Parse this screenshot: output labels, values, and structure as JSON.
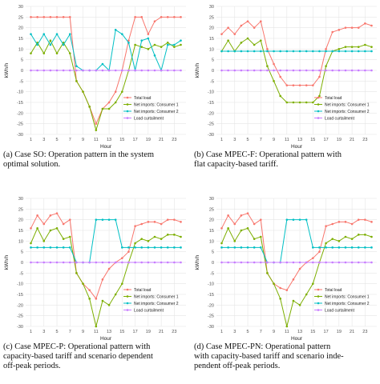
{
  "legend": [
    "Total load",
    "Net imports: Consumer 1",
    "Net imports: Consumer 2",
    "Load curtailment"
  ],
  "colors": {
    "total": "#f8766d",
    "c1": "#7cae00",
    "c2": "#00bfc4",
    "curt": "#c77cff",
    "grid": "#e5e5e5"
  },
  "chart_data": [
    {
      "type": "line",
      "ylabel": "kWh/h",
      "xlabel": "Hour",
      "ylim": [
        -30,
        30
      ],
      "yticks": [
        -30,
        -25,
        -20,
        -15,
        -10,
        -5,
        0,
        5,
        10,
        15,
        20,
        25,
        30
      ],
      "xticks": [
        1,
        3,
        5,
        7,
        9,
        11,
        13,
        15,
        17,
        19,
        21,
        23
      ],
      "x": [
        1,
        2,
        3,
        4,
        5,
        6,
        7,
        8,
        9,
        10,
        11,
        12,
        13,
        14,
        15,
        16,
        17,
        18,
        19,
        20,
        21,
        22,
        23,
        24
      ],
      "series": [
        {
          "name": "Total load",
          "values": [
            25,
            25,
            25,
            25,
            25,
            25,
            25,
            -5,
            -10,
            -17,
            -25,
            -18,
            -15,
            -10,
            0,
            14,
            25,
            25,
            17,
            23,
            25,
            25,
            25,
            25
          ]
        },
        {
          "name": "Net imports: Consumer 1",
          "values": [
            8,
            13,
            8,
            14,
            8,
            13,
            8,
            -5,
            -10,
            -17,
            -28,
            -18,
            -18,
            -15,
            -10,
            0,
            12,
            11,
            10,
            12,
            11,
            13,
            11,
            12
          ]
        },
        {
          "name": "Net imports: Consumer 2",
          "values": [
            17,
            12,
            17,
            12,
            17,
            12,
            17,
            2,
            0,
            0,
            0,
            3,
            0,
            19,
            17,
            13,
            0,
            14,
            15,
            7,
            0,
            12,
            12,
            14
          ]
        },
        {
          "name": "Load curtailment",
          "values": [
            0,
            0,
            0,
            0,
            0,
            0,
            0,
            0,
            0,
            0,
            0,
            0,
            0,
            0,
            0,
            0,
            0,
            0,
            0,
            0,
            0,
            0,
            0,
            0
          ]
        }
      ],
      "caption": "(a) Case SO: Operation pattern in the system optimal solution."
    },
    {
      "type": "line",
      "ylabel": "kWh/h",
      "xlabel": "Hour",
      "ylim": [
        -30,
        30
      ],
      "yticks": [
        -30,
        -25,
        -20,
        -15,
        -10,
        -5,
        0,
        5,
        10,
        15,
        20,
        25,
        30
      ],
      "xticks": [
        1,
        3,
        5,
        7,
        9,
        11,
        13,
        15,
        17,
        19,
        21,
        23
      ],
      "x": [
        1,
        2,
        3,
        4,
        5,
        6,
        7,
        8,
        9,
        10,
        11,
        12,
        13,
        14,
        15,
        16,
        17,
        18,
        19,
        20,
        21,
        22,
        23,
        24
      ],
      "series": [
        {
          "name": "Total load",
          "values": [
            17,
            20,
            17,
            21,
            23,
            20,
            23,
            10,
            3,
            -3,
            -7,
            -7,
            -7,
            -7,
            -7,
            -3,
            10,
            18,
            19,
            20,
            20,
            20,
            22,
            21
          ]
        },
        {
          "name": "Net imports: Consumer 1",
          "values": [
            9,
            14,
            9,
            13,
            15,
            12,
            14,
            2,
            -5,
            -12,
            -15,
            -15,
            -15,
            -15,
            -15,
            -12,
            2,
            9,
            10,
            11,
            11,
            11,
            12,
            11
          ]
        },
        {
          "name": "Net imports: Consumer 2",
          "values": [
            9,
            9,
            9,
            9,
            9,
            9,
            9,
            9,
            9,
            9,
            9,
            9,
            9,
            9,
            9,
            9,
            9,
            9,
            9,
            9,
            9,
            9,
            9,
            9
          ]
        },
        {
          "name": "Load curtailment",
          "values": [
            0,
            0,
            0,
            0,
            0,
            0,
            0,
            0,
            0,
            0,
            0,
            0,
            0,
            0,
            0,
            0,
            0,
            0,
            0,
            0,
            0,
            0,
            0,
            0
          ]
        }
      ],
      "caption": "(b) Case MPEC-F: Operational pattern with flat capacity-based tariff."
    },
    {
      "type": "line",
      "ylabel": "kWh/h",
      "xlabel": "Hour",
      "ylim": [
        -30,
        30
      ],
      "yticks": [
        -30,
        -25,
        -20,
        -15,
        -10,
        -5,
        0,
        5,
        10,
        15,
        20,
        25,
        30
      ],
      "xticks": [
        1,
        3,
        5,
        7,
        9,
        11,
        13,
        15,
        17,
        19,
        21,
        23
      ],
      "x": [
        1,
        2,
        3,
        4,
        5,
        6,
        7,
        8,
        9,
        10,
        11,
        12,
        13,
        14,
        15,
        16,
        17,
        18,
        19,
        20,
        21,
        22,
        23,
        24
      ],
      "series": [
        {
          "name": "Total load",
          "values": [
            16,
            22,
            18,
            22,
            23,
            18,
            20,
            -5,
            -10,
            -13,
            -17,
            -8,
            -3,
            0,
            2,
            5,
            17,
            18,
            19,
            19,
            18,
            20,
            20,
            19
          ]
        },
        {
          "name": "Net imports: Consumer 1",
          "values": [
            9,
            16,
            10,
            15,
            16,
            11,
            12,
            -5,
            -10,
            -17,
            -30,
            -18,
            -20,
            -15,
            -10,
            0,
            9,
            11,
            10,
            12,
            11,
            13,
            13,
            12
          ]
        },
        {
          "name": "Net imports: Consumer 2",
          "values": [
            7,
            7,
            7,
            7,
            7,
            7,
            7,
            0,
            0,
            0,
            20,
            20,
            20,
            20,
            7,
            7,
            7,
            7,
            7,
            7,
            7,
            7,
            7,
            7
          ]
        },
        {
          "name": "Load curtailment",
          "values": [
            0,
            0,
            0,
            0,
            0,
            0,
            0,
            0,
            0,
            0,
            0,
            0,
            0,
            0,
            0,
            0,
            0,
            0,
            0,
            0,
            0,
            0,
            0,
            0
          ]
        }
      ],
      "caption": "(c) Case MPEC-P: Operational pattern with capacity-based tariff and scenario dependent off-peak periods."
    },
    {
      "type": "line",
      "ylabel": "kWh/h",
      "xlabel": "Hour",
      "ylim": [
        -30,
        30
      ],
      "yticks": [
        -30,
        -25,
        -20,
        -15,
        -10,
        -5,
        0,
        5,
        10,
        15,
        20,
        25,
        30
      ],
      "xticks": [
        1,
        3,
        5,
        7,
        9,
        11,
        13,
        15,
        17,
        19,
        21,
        23
      ],
      "x": [
        1,
        2,
        3,
        4,
        5,
        6,
        7,
        8,
        9,
        10,
        11,
        12,
        13,
        14,
        15,
        16,
        17,
        18,
        19,
        20,
        21,
        22,
        23,
        24
      ],
      "series": [
        {
          "name": "Total load",
          "values": [
            16,
            22,
            18,
            22,
            23,
            18,
            20,
            -5,
            -10,
            -12,
            -13,
            -8,
            -3,
            0,
            2,
            5,
            17,
            18,
            19,
            19,
            18,
            20,
            20,
            19
          ]
        },
        {
          "name": "Net imports: Consumer 1",
          "values": [
            9,
            16,
            10,
            15,
            16,
            11,
            12,
            -5,
            -10,
            -17,
            -30,
            -18,
            -20,
            -15,
            -10,
            0,
            9,
            11,
            10,
            12,
            11,
            13,
            13,
            12
          ]
        },
        {
          "name": "Net imports: Consumer 2",
          "values": [
            7,
            7,
            7,
            7,
            7,
            7,
            7,
            0,
            0,
            0,
            20,
            20,
            20,
            20,
            7,
            7,
            7,
            7,
            7,
            7,
            7,
            7,
            7,
            7
          ]
        },
        {
          "name": "Load curtailment",
          "values": [
            0,
            0,
            0,
            0,
            0,
            0,
            0,
            0,
            0,
            0,
            0,
            0,
            0,
            0,
            0,
            0,
            0,
            0,
            0,
            0,
            0,
            0,
            0,
            0
          ]
        }
      ],
      "caption": "(d) Case MPEC-PN: Operational pattern with capacity-based tariff and scenario independent off-peak periods."
    }
  ]
}
